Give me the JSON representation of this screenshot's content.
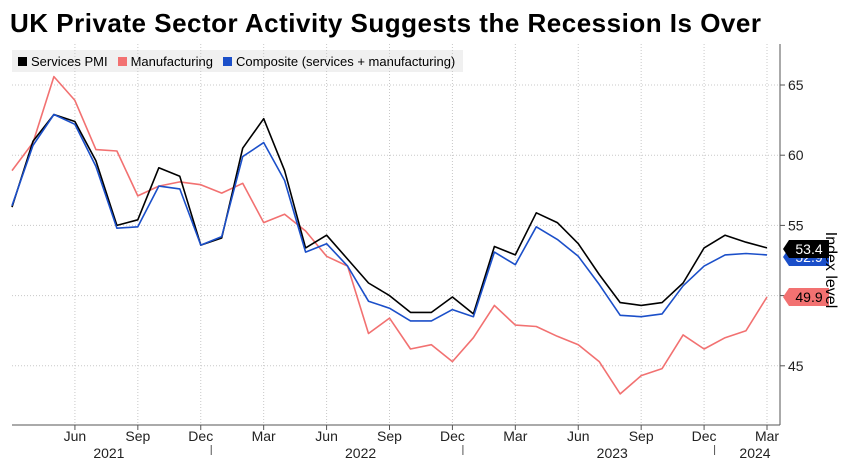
{
  "title": "UK Private Sector Activity Suggests the Recession Is Over",
  "legend": [
    {
      "label": "Services PMI",
      "color": "#000000"
    },
    {
      "label": "Manufacturing",
      "color": "#f27171"
    },
    {
      "label": "Composite (services + manufacturing)",
      "color": "#1b4fc9"
    }
  ],
  "chart_data": {
    "type": "line",
    "title": "UK Private Sector Activity Suggests the Recession Is Over",
    "xlabel": "",
    "ylabel": "Index level",
    "ylim": [
      42,
      68
    ],
    "yticks": [
      45,
      50,
      55,
      60,
      65
    ],
    "x": [
      "2021-03",
      "2021-04",
      "2021-05",
      "2021-06",
      "2021-07",
      "2021-08",
      "2021-09",
      "2021-10",
      "2021-11",
      "2021-12",
      "2022-01",
      "2022-02",
      "2022-03",
      "2022-04",
      "2022-05",
      "2022-06",
      "2022-07",
      "2022-08",
      "2022-09",
      "2022-10",
      "2022-11",
      "2022-12",
      "2023-01",
      "2023-02",
      "2023-03",
      "2023-04",
      "2023-05",
      "2023-06",
      "2023-07",
      "2023-08",
      "2023-09",
      "2023-10",
      "2023-11",
      "2023-12",
      "2024-01",
      "2024-02",
      "2024-03"
    ],
    "xticks": [
      {
        "label": "Jun",
        "index": 3,
        "year": "2021"
      },
      {
        "label": "Sep",
        "index": 6
      },
      {
        "label": "Dec",
        "index": 9
      },
      {
        "label": "Mar",
        "index": 12
      },
      {
        "label": "Jun",
        "index": 15,
        "year": "2022"
      },
      {
        "label": "Sep",
        "index": 18
      },
      {
        "label": "Dec",
        "index": 21
      },
      {
        "label": "Mar",
        "index": 24
      },
      {
        "label": "Jun",
        "index": 27,
        "year": "2023"
      },
      {
        "label": "Sep",
        "index": 30
      },
      {
        "label": "Dec",
        "index": 33
      },
      {
        "label": "Mar",
        "index": 36,
        "year": "2024"
      }
    ],
    "series": [
      {
        "name": "Manufacturing",
        "color": "#f27171",
        "values": [
          58.9,
          60.9,
          65.6,
          63.9,
          60.4,
          60.3,
          57.1,
          57.8,
          58.1,
          57.9,
          57.3,
          58.0,
          55.2,
          55.8,
          54.6,
          52.8,
          52.1,
          47.3,
          48.4,
          46.2,
          46.5,
          45.3,
          47.0,
          49.3,
          47.9,
          47.8,
          47.1,
          46.5,
          45.3,
          43.0,
          44.3,
          44.8,
          47.2,
          46.2,
          47.0,
          47.5,
          49.9
        ]
      },
      {
        "name": "Services PMI",
        "color": "#000000",
        "values": [
          56.3,
          61.0,
          62.9,
          62.4,
          59.6,
          55.0,
          55.4,
          59.1,
          58.5,
          53.6,
          54.1,
          60.5,
          62.6,
          58.9,
          53.4,
          54.3,
          52.6,
          50.9,
          50.0,
          48.8,
          48.8,
          49.9,
          48.7,
          53.5,
          52.9,
          55.9,
          55.2,
          53.7,
          51.5,
          49.5,
          49.3,
          49.5,
          50.9,
          53.4,
          54.3,
          53.8,
          53.4
        ]
      },
      {
        "name": "Composite (services + manufacturing)",
        "color": "#1b4fc9",
        "values": [
          56.4,
          60.7,
          62.9,
          62.2,
          59.2,
          54.8,
          54.9,
          57.8,
          57.6,
          53.6,
          54.2,
          59.9,
          60.9,
          58.2,
          53.1,
          53.7,
          52.1,
          49.6,
          49.1,
          48.2,
          48.2,
          49.0,
          48.5,
          53.1,
          52.2,
          54.9,
          54.0,
          52.8,
          50.8,
          48.6,
          48.5,
          48.7,
          50.7,
          52.1,
          52.9,
          53.0,
          52.9
        ]
      }
    ],
    "end_labels": [
      {
        "series": "Services PMI",
        "text": "53.4",
        "bg": "#000000",
        "fg": "#ffffff"
      },
      {
        "series": "Composite (services + manufacturing)",
        "text": "52.9",
        "bg": "#1b4fc9",
        "fg": "#ffffff"
      },
      {
        "series": "Manufacturing",
        "text": "49.9",
        "bg": "#f27171",
        "fg": "#000000"
      }
    ],
    "grid": true,
    "legend_position": "top-left"
  }
}
